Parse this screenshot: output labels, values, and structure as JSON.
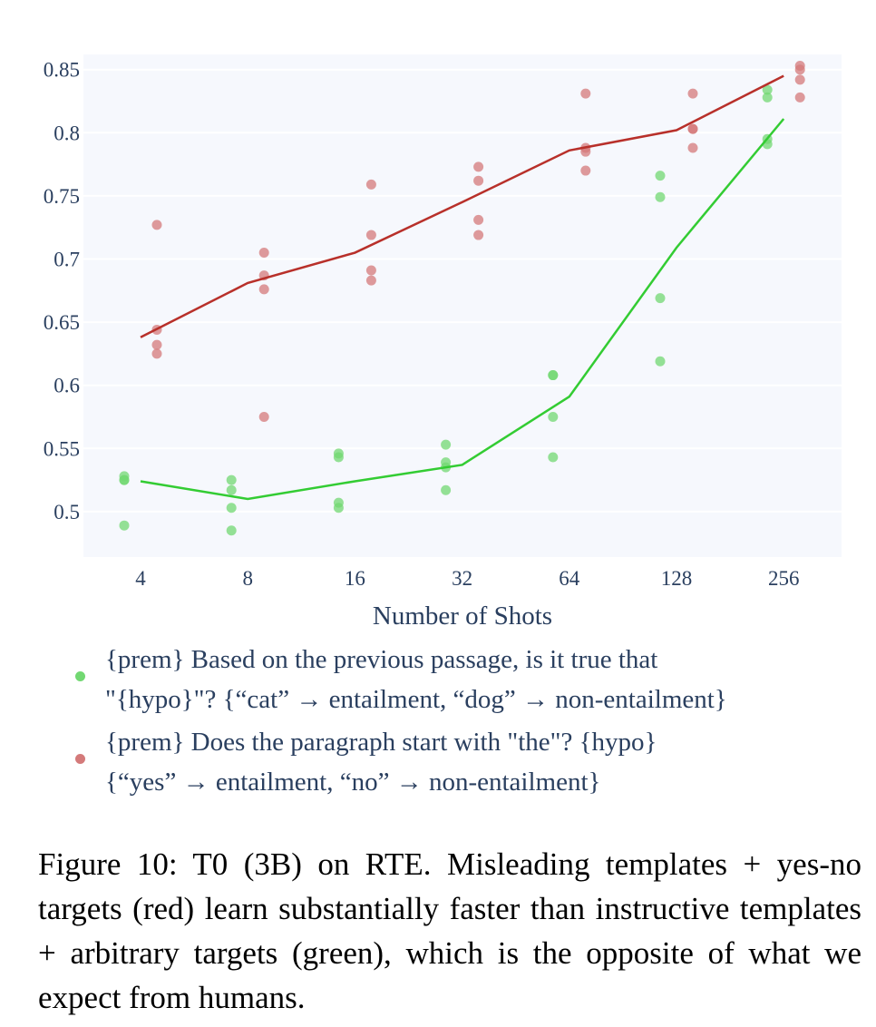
{
  "chart_data": {
    "type": "scatter",
    "xlabel": "Number of Shots",
    "ylabel": "",
    "x_categories": [
      "4",
      "8",
      "16",
      "32",
      "64",
      "128",
      "256"
    ],
    "y_ticks": [
      "0.5",
      "0.55",
      "0.6",
      "0.65",
      "0.7",
      "0.75",
      "0.8",
      "0.85"
    ],
    "y_tick_values": [
      0.5,
      0.55,
      0.6,
      0.65,
      0.7,
      0.75,
      0.8,
      0.85
    ],
    "ylim": [
      0.464,
      0.862
    ],
    "grid": true,
    "legend_position": "bottom",
    "series": [
      {
        "name": "{prem} Based on the previous passage, is it true that \"{hypo}\"? {“cat” → entailment, “dog” → non-entailment}",
        "color": "#33cc33",
        "point_color": "#72d872",
        "points": [
          [
            0.528,
            0.525,
            0.525,
            0.489
          ],
          [
            0.525,
            0.517,
            0.503,
            0.485
          ],
          [
            0.546,
            0.543,
            0.507,
            0.503
          ],
          [
            0.553,
            0.539,
            0.535,
            0.517
          ],
          [
            0.608,
            0.608,
            0.575,
            0.543
          ],
          [
            0.766,
            0.749,
            0.669,
            0.619
          ],
          [
            0.834,
            0.828,
            0.795,
            0.791
          ]
        ],
        "mean": [
          0.524,
          0.51,
          0.524,
          0.537,
          0.591,
          0.709,
          0.811
        ]
      },
      {
        "name": "{prem} Does the paragraph start with \"the\"? {hypo} {“yes” → entailment, “no” → non-entailment}",
        "color": "#b8302a",
        "point_color": "#d47a7a",
        "points": [
          [
            0.727,
            0.644,
            0.632,
            0.625
          ],
          [
            0.705,
            0.687,
            0.676,
            0.575
          ],
          [
            0.759,
            0.719,
            0.691,
            0.683
          ],
          [
            0.773,
            0.762,
            0.731,
            0.719
          ],
          [
            0.831,
            0.788,
            0.785,
            0.77
          ],
          [
            0.831,
            0.803,
            0.803,
            0.788
          ],
          [
            0.853,
            0.85,
            0.842,
            0.828
          ]
        ],
        "mean": [
          0.638,
          0.681,
          0.705,
          0.745,
          0.786,
          0.802,
          0.845
        ]
      }
    ]
  },
  "legend": {
    "items": [
      {
        "line1": "{prem} Based on the previous passage, is it true that",
        "line2": "\"{hypo}\"? {“cat” → entailment, “dog” → non-entailment}"
      },
      {
        "line1": "{prem} Does the paragraph start with \"the\"? {hypo}",
        "line2": "{“yes” → entailment, “no” → non-entailment}"
      }
    ]
  },
  "caption": "Figure 10: T0 (3B) on RTE. Misleading templates + yes-no targets (red) learn substantially faster than instructive templates + arbitrary targets (green), which is the opposite of what we expect from humans."
}
